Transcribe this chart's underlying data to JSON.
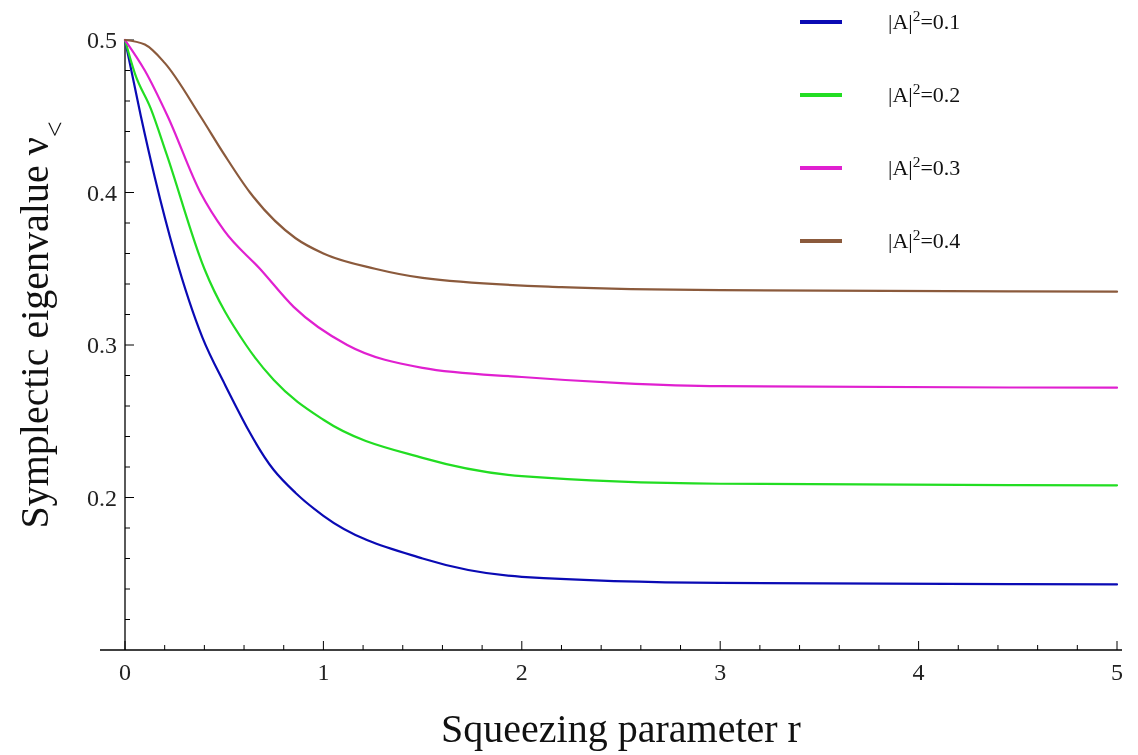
{
  "chart_data": {
    "type": "line",
    "xlabel": "Squeezing parameter r",
    "ylabel": "Symplectic eigenvalue ν$_{<}$",
    "xlim": [
      0,
      5
    ],
    "ylim": [
      0.1,
      0.5
    ],
    "xticks": [
      0,
      {
        "value": 0.2,
        "label": null
      },
      {
        "value": 0.4,
        "label": null
      },
      {
        "value": 0.6,
        "label": null
      },
      {
        "value": 0.8,
        "label": null
      },
      1,
      {
        "value": 1.2,
        "label": null
      },
      {
        "value": 1.4,
        "label": null
      },
      {
        "value": 1.6,
        "label": null
      },
      {
        "value": 1.8,
        "label": null
      },
      2,
      {
        "value": 2.2,
        "label": null
      },
      {
        "value": 2.4,
        "label": null
      },
      {
        "value": 2.6,
        "label": null
      },
      {
        "value": 2.8,
        "label": null
      },
      3,
      {
        "value": 3.2,
        "label": null
      },
      {
        "value": 3.4,
        "label": null
      },
      {
        "value": 3.6,
        "label": null
      },
      {
        "value": 3.8,
        "label": null
      },
      4,
      {
        "value": 4.2,
        "label": null
      },
      {
        "value": 4.4,
        "label": null
      },
      {
        "value": 4.6,
        "label": null
      },
      {
        "value": 4.8,
        "label": null
      },
      5
    ],
    "yticks": [
      {
        "value": 0.12,
        "label": null
      },
      {
        "value": 0.14,
        "label": null
      },
      {
        "value": 0.16,
        "label": null
      },
      {
        "value": 0.18,
        "label": null
      },
      0.2,
      {
        "value": 0.22,
        "label": null
      },
      {
        "value": 0.24,
        "label": null
      },
      {
        "value": 0.26,
        "label": null
      },
      {
        "value": 0.28,
        "label": null
      },
      0.3,
      {
        "value": 0.32,
        "label": null
      },
      {
        "value": 0.34,
        "label": null
      },
      {
        "value": 0.36,
        "label": null
      },
      {
        "value": 0.38,
        "label": null
      },
      0.4,
      {
        "value": 0.42,
        "label": null
      },
      {
        "value": 0.44,
        "label": null
      },
      {
        "value": 0.46,
        "label": null
      },
      {
        "value": 0.48,
        "label": null
      },
      0.5
    ],
    "grid": false,
    "legend": "top right",
    "marker": "none",
    "line_style": "solid",
    "series": [
      {
        "name": "|A|$^{2}$=0.1",
        "color": "#0a0ab4",
        "x": [
          0,
          0.08,
          0.15,
          0.25,
          0.39,
          0.5,
          0.75,
          0.86,
          1,
          1.5,
          2,
          3,
          5
        ],
        "values": [
          0.5,
          0.45,
          0.41,
          0.36,
          0.305,
          0.275,
          0.218,
          0.203,
          0.188,
          0.16,
          0.148,
          0.144,
          0.143
        ]
      },
      {
        "name": "|A|$^{2}$=0.2",
        "color": "#22dd22",
        "x": [
          0,
          0.05,
          0.13,
          0.21,
          0.4,
          0.61,
          0.75,
          1,
          1.5,
          2,
          3,
          5
        ],
        "values": [
          0.5,
          0.478,
          0.455,
          0.425,
          0.35,
          0.3,
          0.277,
          0.251,
          0.226,
          0.214,
          0.209,
          0.208
        ]
      },
      {
        "name": "|A|$^{2}$=0.3",
        "color": "#e020d0",
        "x": [
          0,
          0.1,
          0.215,
          0.38,
          0.5,
          0.68,
          0.85,
          1.12,
          1.5,
          2,
          2.5,
          3,
          5
        ],
        "values": [
          0.5,
          0.48,
          0.45,
          0.4,
          0.375,
          0.35,
          0.325,
          0.3,
          0.285,
          0.279,
          0.275,
          0.273,
          0.272
        ]
      },
      {
        "name": "|A|$^{2}$=0.4",
        "color": "#8b5a3c",
        "x": [
          0,
          0.1,
          0.2,
          0.38,
          0.5,
          0.63,
          0.86,
          1,
          1.26,
          1.5,
          2.2,
          3,
          5
        ],
        "values": [
          0.5,
          0.497,
          0.485,
          0.45,
          0.425,
          0.4,
          0.37,
          0.36,
          0.35,
          0.344,
          0.338,
          0.336,
          0.335
        ]
      }
    ]
  }
}
